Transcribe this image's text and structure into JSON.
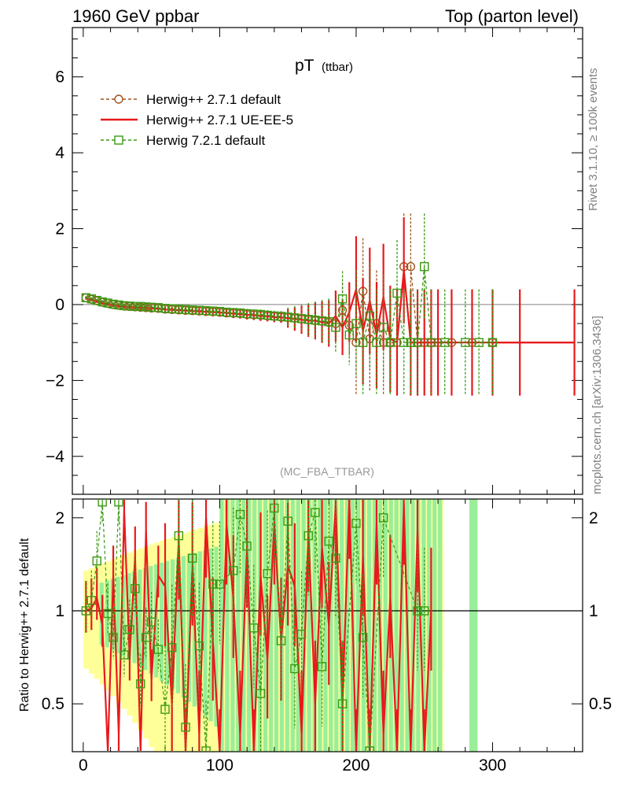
{
  "header": {
    "left": "1960 GeV ppbar",
    "right": "Top (parton level)"
  },
  "side_labels": {
    "rivet": "Rivet 3.1.10, ≥ 100k events",
    "mcplots": "mcplots.cern.ch [arXiv:1306.3436]"
  },
  "colors": {
    "default271": "#a0521c",
    "ueee5": "#e8191c",
    "herwig721": "#3a9a12",
    "band_yellow": "#ffff99",
    "band_green": "#99ee99"
  },
  "chart_data": [
    {
      "type": "line",
      "title": "pT",
      "title_sub": "(ttbar)",
      "watermark": "(MC_FBA_TTBAR)",
      "xlabel": "",
      "ylabel": "",
      "xlim": [
        -8,
        366
      ],
      "ylim": [
        -5,
        7.3
      ],
      "x_ticks": [
        0,
        100,
        200,
        300
      ],
      "y_ticks": [
        -4,
        -2,
        0,
        2,
        4,
        6
      ],
      "grid": false,
      "legend_position": "top-left",
      "series": [
        {
          "name": "Herwig++ 2.7.1 default",
          "style": "dashed-circle",
          "x": [
            2,
            6,
            10,
            14,
            18,
            22,
            26,
            30,
            34,
            38,
            42,
            46,
            50,
            55,
            60,
            65,
            70,
            75,
            80,
            85,
            90,
            95,
            100,
            105,
            110,
            115,
            120,
            125,
            130,
            135,
            140,
            145,
            150,
            155,
            160,
            165,
            170,
            175,
            180,
            185,
            190,
            195,
            200,
            205,
            210,
            215,
            220,
            225,
            230,
            235,
            240,
            245,
            250,
            255,
            260,
            270,
            285,
            300
          ],
          "y": [
            0.18,
            0.14,
            0.1,
            0.06,
            0.03,
            0.0,
            -0.02,
            -0.04,
            -0.05,
            -0.06,
            -0.07,
            -0.08,
            -0.09,
            -0.1,
            -0.12,
            -0.13,
            -0.14,
            -0.15,
            -0.16,
            -0.17,
            -0.18,
            -0.19,
            -0.2,
            -0.22,
            -0.23,
            -0.24,
            -0.26,
            -0.27,
            -0.28,
            -0.3,
            -0.31,
            -0.33,
            -0.34,
            -0.36,
            -0.38,
            -0.4,
            -0.42,
            -0.44,
            -0.47,
            -0.5,
            -0.15,
            -0.55,
            -1.0,
            0.35,
            -0.9,
            -0.5,
            -1.0,
            -1.0,
            -1.0,
            1.0,
            1.0,
            -1.0,
            -1.0,
            -1.0,
            -1.0,
            -1.0,
            -1.0,
            -1.0
          ]
        },
        {
          "name": "Herwig++ 2.7.1 UE-EE-5",
          "style": "solid",
          "x": [
            2,
            6,
            10,
            14,
            18,
            22,
            26,
            30,
            34,
            38,
            42,
            46,
            50,
            55,
            60,
            65,
            70,
            75,
            80,
            85,
            90,
            95,
            100,
            105,
            110,
            115,
            120,
            125,
            130,
            135,
            140,
            145,
            150,
            155,
            160,
            165,
            170,
            175,
            180,
            185,
            190,
            195,
            200,
            205,
            210,
            215,
            220,
            225,
            230,
            235,
            240,
            245,
            250,
            255,
            260,
            270,
            285,
            300,
            320,
            360
          ],
          "y": [
            0.17,
            0.13,
            0.09,
            0.05,
            0.02,
            -0.01,
            -0.03,
            -0.05,
            -0.06,
            -0.07,
            -0.08,
            -0.09,
            -0.1,
            -0.11,
            -0.13,
            -0.14,
            -0.15,
            -0.16,
            -0.17,
            -0.18,
            -0.19,
            -0.2,
            -0.21,
            -0.22,
            -0.24,
            -0.25,
            -0.27,
            -0.28,
            -0.3,
            -0.31,
            -0.33,
            -0.34,
            -0.36,
            -0.38,
            -0.4,
            -0.42,
            -0.43,
            -0.46,
            -0.5,
            -0.3,
            -0.6,
            -0.2,
            0.4,
            -0.7,
            0.1,
            -0.8,
            0.2,
            -0.9,
            -1.0,
            0.9,
            -1.0,
            -1.0,
            -1.0,
            -1.0,
            -1.0,
            -1.0,
            -1.0,
            -1.0,
            -1.0,
            -1.0
          ]
        },
        {
          "name": "Herwig 7.2.1 default",
          "style": "dashed-square",
          "x": [
            2,
            6,
            10,
            14,
            18,
            22,
            26,
            30,
            34,
            38,
            42,
            46,
            50,
            55,
            60,
            65,
            70,
            75,
            80,
            85,
            90,
            95,
            100,
            105,
            110,
            115,
            120,
            125,
            130,
            135,
            140,
            145,
            150,
            155,
            160,
            165,
            170,
            175,
            180,
            185,
            190,
            195,
            200,
            205,
            210,
            215,
            220,
            225,
            230,
            235,
            240,
            245,
            250,
            255,
            265,
            280,
            290,
            300
          ],
          "y": [
            0.18,
            0.15,
            0.11,
            0.07,
            0.04,
            0.01,
            -0.01,
            -0.03,
            -0.04,
            -0.05,
            -0.05,
            -0.06,
            -0.07,
            -0.08,
            -0.1,
            -0.11,
            -0.12,
            -0.13,
            -0.14,
            -0.15,
            -0.16,
            -0.17,
            -0.18,
            -0.2,
            -0.21,
            -0.22,
            -0.24,
            -0.25,
            -0.26,
            -0.28,
            -0.3,
            -0.31,
            -0.33,
            -0.35,
            -0.37,
            -0.39,
            -0.41,
            -0.43,
            -0.45,
            -0.6,
            0.15,
            -0.8,
            -0.5,
            -1.0,
            -0.3,
            -1.0,
            -0.6,
            -1.0,
            0.3,
            -1.0,
            -1.0,
            -1.0,
            1.0,
            -1.0,
            -1.0,
            -1.0,
            -1.0,
            -1.0
          ]
        }
      ]
    },
    {
      "type": "line",
      "title": "",
      "xlabel": "",
      "ylabel": "Ratio to Herwig++ 2.7.1 default",
      "xlim": [
        -8,
        366
      ],
      "ylim": [
        0.35,
        2.3
      ],
      "x_ticks": [
        0,
        100,
        200,
        300
      ],
      "y_ticks": [
        0.5,
        1,
        2
      ],
      "reference_line": 1,
      "grid": false,
      "bands": {
        "yellow_until": 262,
        "green_until": 262,
        "green_extra": [
          283,
          289
        ]
      },
      "series": [
        {
          "name": "Herwig++ 2.7.1 UE-EE-5",
          "x": [
            2,
            6,
            10,
            14,
            18,
            22,
            26,
            30,
            34,
            38,
            42,
            46,
            50,
            55,
            60,
            65,
            70,
            75,
            80,
            85,
            90,
            95,
            100,
            105,
            110,
            115,
            120,
            125,
            130,
            135,
            140,
            145,
            150,
            155,
            160,
            165,
            170,
            175,
            180,
            185,
            190,
            195,
            200,
            205,
            210,
            215,
            220,
            225,
            230,
            235,
            240,
            245,
            250,
            255
          ],
          "y": [
            1.0,
            1.02,
            1.1,
            0.9,
            0.3,
            1.3,
            0.4,
            2.1,
            0.7,
            1.5,
            0.3,
            1.8,
            0.6,
            1.3,
            1.2,
            0.5,
            1.7,
            0.3,
            1.4,
            0.4,
            2.0,
            0.8,
            0.3,
            1.9,
            1.1,
            0.4,
            1.6,
            0.3,
            1.3,
            0.7,
            1.9,
            0.8,
            1.4,
            1.2,
            0.4,
            1.8,
            0.5,
            1.6,
            0.9,
            2.2,
            0.5,
            2.3,
            0.3,
            1.5,
            0.3,
            1.9,
            0.4,
            1.1,
            0.3,
            2.2,
            0.3,
            1.8,
            0.3,
            1.0
          ]
        },
        {
          "name": "Herwig 7.2.1 default",
          "x": [
            2,
            6,
            10,
            14,
            18,
            22,
            26,
            30,
            34,
            38,
            42,
            46,
            50,
            55,
            60,
            65,
            70,
            75,
            80,
            85,
            90,
            95,
            100,
            110,
            115,
            120,
            125,
            130,
            135,
            140,
            145,
            150,
            155,
            160,
            165,
            170,
            175,
            180,
            185,
            190,
            200,
            205,
            210,
            220,
            245,
            250
          ],
          "y": [
            1.0,
            1.08,
            1.45,
            2.25,
            0.98,
            0.82,
            2.25,
            0.72,
            0.87,
            1.18,
            0.58,
            0.82,
            0.92,
            0.75,
            0.48,
            0.76,
            1.75,
            0.42,
            1.48,
            0.77,
            0.32,
            1.22,
            1.22,
            1.35,
            2.05,
            1.62,
            0.88,
            0.54,
            1.32,
            2.15,
            0.8,
            1.95,
            0.65,
            0.84,
            1.75,
            2.08,
            0.66,
            1.68,
            1.48,
            0.5,
            1.92,
            0.82,
            0.3,
            2.0,
            1.0,
            1.0
          ]
        }
      ]
    }
  ]
}
